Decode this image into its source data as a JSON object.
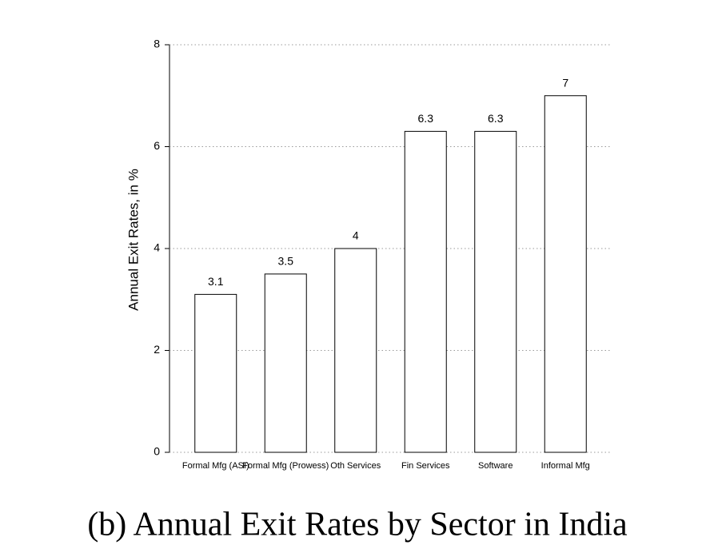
{
  "chart_data": {
    "type": "bar",
    "caption": "(b) Annual Exit Rates by Sector in India",
    "y_label": "Annual Exit Rates, in %",
    "categories": [
      "Formal Mfg (ASI)",
      "Formal Mfg (Prowess)",
      "Oth Services",
      "Fin Services",
      "Software",
      "Informal Mfg"
    ],
    "values": [
      3.1,
      3.5,
      4,
      6.3,
      6.3,
      7
    ],
    "color": "#ffffff",
    "ylim": [
      0,
      8
    ],
    "yticks": [
      0,
      2,
      4,
      6,
      8
    ],
    "grid": true
  }
}
